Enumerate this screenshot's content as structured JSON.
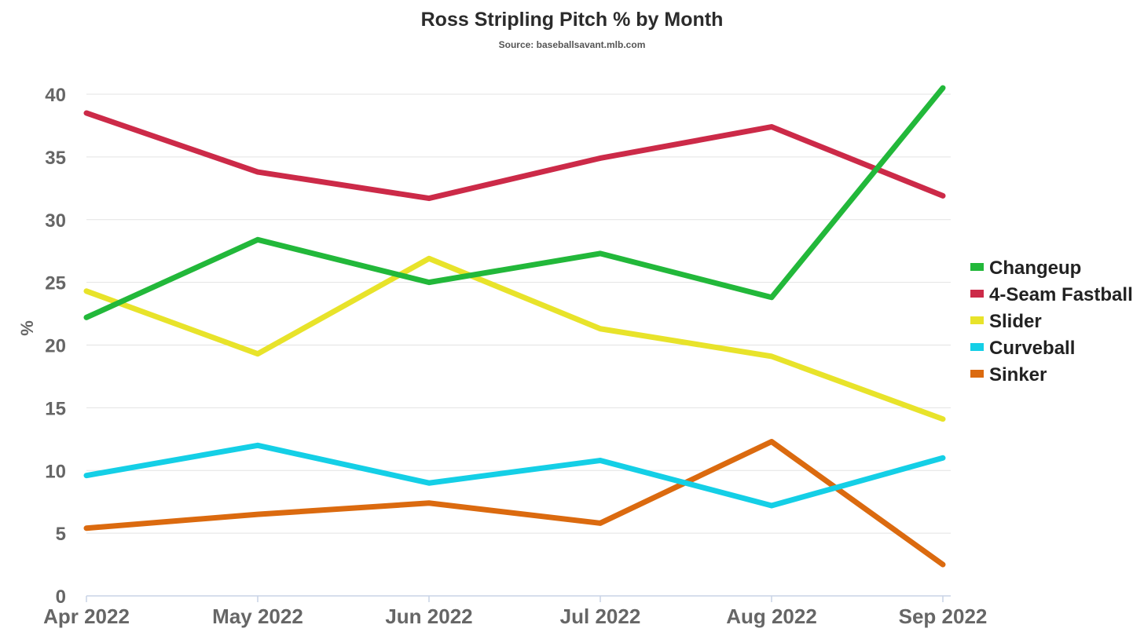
{
  "chart_data": {
    "type": "line",
    "title": "Ross Stripling Pitch % by Month",
    "subtitle": "Source: baseballsavant.mlb.com",
    "xlabel": "",
    "ylabel": "%",
    "categories": [
      "Apr 2022",
      "May 2022",
      "Jun 2022",
      "Jul 2022",
      "Aug 2022",
      "Sep 2022"
    ],
    "ylim": [
      0,
      40
    ],
    "yticks": [
      "0",
      "5",
      "10",
      "15",
      "20",
      "25",
      "30",
      "35",
      "40"
    ],
    "grid": true,
    "legend_position": "right",
    "series": [
      {
        "name": "Changeup",
        "color": "#22b83a",
        "values": [
          22.2,
          28.4,
          25.0,
          27.3,
          23.8,
          40.5
        ]
      },
      {
        "name": "4-Seam Fastball",
        "color": "#cc2a48",
        "values": [
          38.5,
          33.8,
          31.7,
          34.9,
          37.4,
          31.9
        ]
      },
      {
        "name": "Slider",
        "color": "#e8e32a",
        "values": [
          24.3,
          19.3,
          26.9,
          21.3,
          19.1,
          14.1
        ]
      },
      {
        "name": "Curveball",
        "color": "#14cfe6",
        "values": [
          9.6,
          12.0,
          9.0,
          10.8,
          7.2,
          11.0
        ]
      },
      {
        "name": "Sinker",
        "color": "#db6a0f",
        "values": [
          5.4,
          6.5,
          7.4,
          5.8,
          12.3,
          2.5
        ]
      }
    ]
  }
}
